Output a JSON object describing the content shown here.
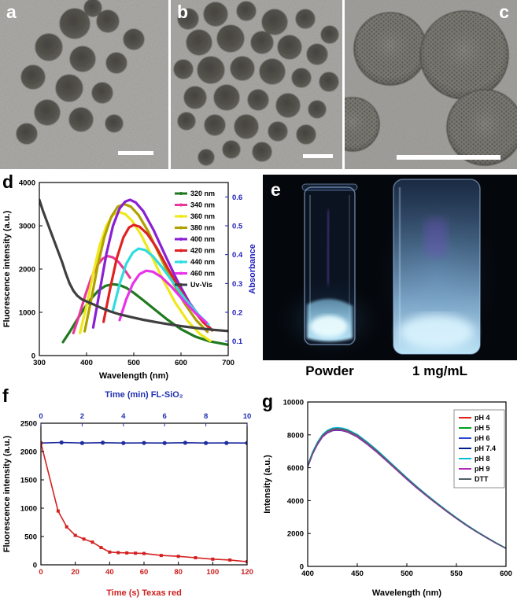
{
  "panels": {
    "a": {
      "label": "a"
    },
    "b": {
      "label": "b"
    },
    "c": {
      "label": "c"
    },
    "d": {
      "label": "d"
    },
    "e": {
      "label": "e",
      "captions": [
        "Powder",
        "1 mg/mL"
      ]
    },
    "f": {
      "label": "f"
    },
    "g": {
      "label": "g"
    }
  },
  "chart_data": [
    {
      "id": "d",
      "type": "line",
      "xlabel": "Wavelength (nm)",
      "xlim": [
        300,
        700
      ],
      "xticks": [
        300,
        400,
        500,
        600,
        700
      ],
      "ylabel": "Fluorescence intensity (a.u.)",
      "ylim": [
        0,
        4000
      ],
      "yticks": [
        0,
        1000,
        2000,
        3000,
        4000
      ],
      "y2label": "Absorbance",
      "y2lim": [
        0.05,
        0.65
      ],
      "y2ticks": [
        0.1,
        0.2,
        0.3,
        0.4,
        0.5,
        0.6
      ],
      "y2_color": "#2020bb",
      "line_width": 3.2,
      "legend_position": "top-right",
      "series": [
        {
          "name": "320 nm",
          "color": "#1f7a1f",
          "points": [
            [
              350,
              310
            ],
            [
              365,
              560
            ],
            [
              380,
              830
            ],
            [
              395,
              1090
            ],
            [
              410,
              1320
            ],
            [
              425,
              1500
            ],
            [
              440,
              1610
            ],
            [
              455,
              1650
            ],
            [
              470,
              1630
            ],
            [
              485,
              1560
            ],
            [
              500,
              1450
            ],
            [
              520,
              1280
            ],
            [
              545,
              1060
            ],
            [
              570,
              840
            ],
            [
              600,
              610
            ],
            [
              630,
              440
            ],
            [
              660,
              330
            ],
            [
              700,
              250
            ]
          ]
        },
        {
          "name": "340 nm",
          "color": "#e8399a",
          "points": [
            [
              372,
              520
            ],
            [
              385,
              950
            ],
            [
              398,
              1420
            ],
            [
              410,
              1800
            ],
            [
              422,
              2080
            ],
            [
              434,
              2240
            ],
            [
              445,
              2300
            ],
            [
              456,
              2270
            ],
            [
              468,
              2160
            ],
            [
              480,
              1990
            ],
            [
              492,
              1800
            ]
          ]
        },
        {
          "name": "360 nm",
          "color": "#efe81a",
          "points": [
            [
              386,
              520
            ],
            [
              400,
              1150
            ],
            [
              414,
              1900
            ],
            [
              428,
              2550
            ],
            [
              442,
              3000
            ],
            [
              456,
              3250
            ],
            [
              468,
              3320
            ],
            [
              482,
              3270
            ],
            [
              496,
              3120
            ],
            [
              515,
              2800
            ],
            [
              538,
              2300
            ],
            [
              562,
              1750
            ],
            [
              588,
              1220
            ],
            [
              614,
              800
            ],
            [
              640,
              500
            ],
            [
              662,
              340
            ]
          ]
        },
        {
          "name": "380 nm",
          "color": "#b0a000",
          "points": [
            [
              396,
              560
            ],
            [
              410,
              1300
            ],
            [
              424,
              2100
            ],
            [
              438,
              2750
            ],
            [
              452,
              3200
            ],
            [
              466,
              3440
            ],
            [
              480,
              3500
            ],
            [
              494,
              3440
            ],
            [
              510,
              3250
            ],
            [
              530,
              2880
            ],
            [
              554,
              2330
            ],
            [
              580,
              1750
            ],
            [
              606,
              1230
            ],
            [
              632,
              820
            ],
            [
              656,
              550
            ]
          ]
        },
        {
          "name": "400 nm",
          "color": "#8a1fd4",
          "points": [
            [
              414,
              650
            ],
            [
              428,
              1500
            ],
            [
              442,
              2350
            ],
            [
              456,
              3000
            ],
            [
              470,
              3400
            ],
            [
              482,
              3560
            ],
            [
              492,
              3600
            ],
            [
              504,
              3540
            ],
            [
              520,
              3340
            ],
            [
              542,
              2900
            ],
            [
              566,
              2330
            ],
            [
              592,
              1730
            ],
            [
              618,
              1220
            ],
            [
              644,
              830
            ],
            [
              664,
              610
            ]
          ]
        },
        {
          "name": "420 nm",
          "color": "#e02222",
          "points": [
            [
              436,
              780
            ],
            [
              450,
              1550
            ],
            [
              464,
              2250
            ],
            [
              478,
              2730
            ],
            [
              490,
              2960
            ],
            [
              500,
              3020
            ],
            [
              512,
              2980
            ],
            [
              528,
              2820
            ],
            [
              548,
              2500
            ],
            [
              572,
              2020
            ],
            [
              598,
              1520
            ],
            [
              624,
              1080
            ],
            [
              648,
              760
            ],
            [
              666,
              580
            ]
          ]
        },
        {
          "name": "440 nm",
          "color": "#30dce0",
          "points": [
            [
              456,
              1050
            ],
            [
              470,
              1650
            ],
            [
              484,
              2120
            ],
            [
              498,
              2380
            ],
            [
              510,
              2470
            ],
            [
              524,
              2440
            ],
            [
              540,
              2300
            ],
            [
              560,
              2040
            ],
            [
              584,
              1680
            ],
            [
              610,
              1290
            ],
            [
              636,
              960
            ],
            [
              658,
              720
            ]
          ]
        },
        {
          "name": "460 nm",
          "color": "#e832e8",
          "points": [
            [
              470,
              820
            ],
            [
              484,
              1300
            ],
            [
              498,
              1660
            ],
            [
              512,
              1880
            ],
            [
              526,
              1960
            ],
            [
              540,
              1940
            ],
            [
              558,
              1820
            ],
            [
              580,
              1590
            ],
            [
              604,
              1290
            ],
            [
              630,
              990
            ],
            [
              654,
              760
            ]
          ]
        },
        {
          "name": "Uv-Vis",
          "color": "#3f3f3f",
          "axis": "y2",
          "points": [
            [
              300,
              0.59
            ],
            [
              308,
              0.55
            ],
            [
              316,
              0.515
            ],
            [
              324,
              0.48
            ],
            [
              332,
              0.445
            ],
            [
              340,
              0.41
            ],
            [
              348,
              0.375
            ],
            [
              356,
              0.335
            ],
            [
              364,
              0.3
            ],
            [
              372,
              0.275
            ],
            [
              380,
              0.258
            ],
            [
              390,
              0.245
            ],
            [
              400,
              0.238
            ],
            [
              415,
              0.227
            ],
            [
              430,
              0.216
            ],
            [
              450,
              0.203
            ],
            [
              470,
              0.193
            ],
            [
              495,
              0.183
            ],
            [
              520,
              0.174
            ],
            [
              550,
              0.165
            ],
            [
              580,
              0.157
            ],
            [
              610,
              0.15
            ],
            [
              640,
              0.144
            ],
            [
              670,
              0.139
            ],
            [
              700,
              0.135
            ]
          ]
        }
      ]
    },
    {
      "id": "f",
      "type": "line",
      "xlabel": "Time (s) Texas red",
      "x_color": "#cc2020",
      "xlim": [
        0,
        120
      ],
      "xticks": [
        0,
        20,
        40,
        60,
        80,
        100,
        120
      ],
      "x2label": "Time (min) FL-SiO₂",
      "x2_color": "#2030b0",
      "x2lim": [
        0,
        10
      ],
      "x2ticks": [
        0,
        2,
        4,
        6,
        8,
        10
      ],
      "ylabel": "Fluorescence intensity (a.u.)",
      "ylim": [
        0,
        2500
      ],
      "yticks": [
        0,
        500,
        1000,
        1500,
        2000,
        2500
      ],
      "line_width": 1.6,
      "series": [
        {
          "name": "FL-SiO₂",
          "color": "#1f2d9e",
          "axis_x": "x2",
          "marker": "circle",
          "points": [
            [
              0,
              2150
            ],
            [
              1,
              2160
            ],
            [
              2,
              2150
            ],
            [
              3,
              2156
            ],
            [
              4,
              2150
            ],
            [
              5,
              2152
            ],
            [
              6,
              2150
            ],
            [
              7,
              2155
            ],
            [
              8,
              2150
            ],
            [
              9,
              2151
            ],
            [
              10,
              2150
            ]
          ]
        },
        {
          "name": "Texas red",
          "color": "#d42020",
          "marker": "square",
          "points": [
            [
              0,
              2150
            ],
            [
              10,
              950
            ],
            [
              15,
              670
            ],
            [
              20,
              520
            ],
            [
              25,
              455
            ],
            [
              30,
              400
            ],
            [
              35,
              305
            ],
            [
              40,
              225
            ],
            [
              45,
              215
            ],
            [
              50,
              210
            ],
            [
              55,
              205
            ],
            [
              60,
              200
            ],
            [
              70,
              165
            ],
            [
              80,
              150
            ],
            [
              90,
              125
            ],
            [
              100,
              100
            ],
            [
              110,
              85
            ],
            [
              120,
              55
            ]
          ]
        }
      ]
    },
    {
      "id": "g",
      "type": "line",
      "xlabel": "Wavelength (nm)",
      "xlim": [
        400,
        600
      ],
      "xticks": [
        400,
        450,
        500,
        550,
        600
      ],
      "ylabel": "Intensity (a.u.)",
      "ylim": [
        0,
        10000
      ],
      "yticks": [
        0,
        2000,
        4000,
        6000,
        8000,
        10000
      ],
      "line_width": 1.4,
      "legend_position": "top-right",
      "x_base": [
        400,
        405,
        410,
        415,
        420,
        425,
        430,
        435,
        440,
        450,
        460,
        470,
        480,
        490,
        500,
        510,
        520,
        530,
        540,
        550,
        560,
        570,
        580,
        590,
        600
      ],
      "base_values": [
        6100,
        6900,
        7500,
        7950,
        8200,
        8330,
        8360,
        8330,
        8250,
        7950,
        7500,
        7000,
        6450,
        5900,
        5350,
        4820,
        4320,
        3840,
        3380,
        2940,
        2520,
        2130,
        1770,
        1420,
        1100
      ],
      "series": [
        {
          "name": "pH 4",
          "color": "#e02222",
          "scale": 1.0
        },
        {
          "name": "pH 5",
          "color": "#00a020",
          "scale": 0.995
        },
        {
          "name": "pH 6",
          "color": "#2743d0",
          "scale": 1.005
        },
        {
          "name": "pH 7.4",
          "color": "#001c8f",
          "scale": 0.99
        },
        {
          "name": "pH 8",
          "color": "#00bcd4",
          "scale": 1.01
        },
        {
          "name": "pH 9",
          "color": "#b02cb0",
          "scale": 0.9925
        },
        {
          "name": "DTT",
          "color": "#4f6066",
          "scale": 1.0025
        }
      ]
    }
  ]
}
